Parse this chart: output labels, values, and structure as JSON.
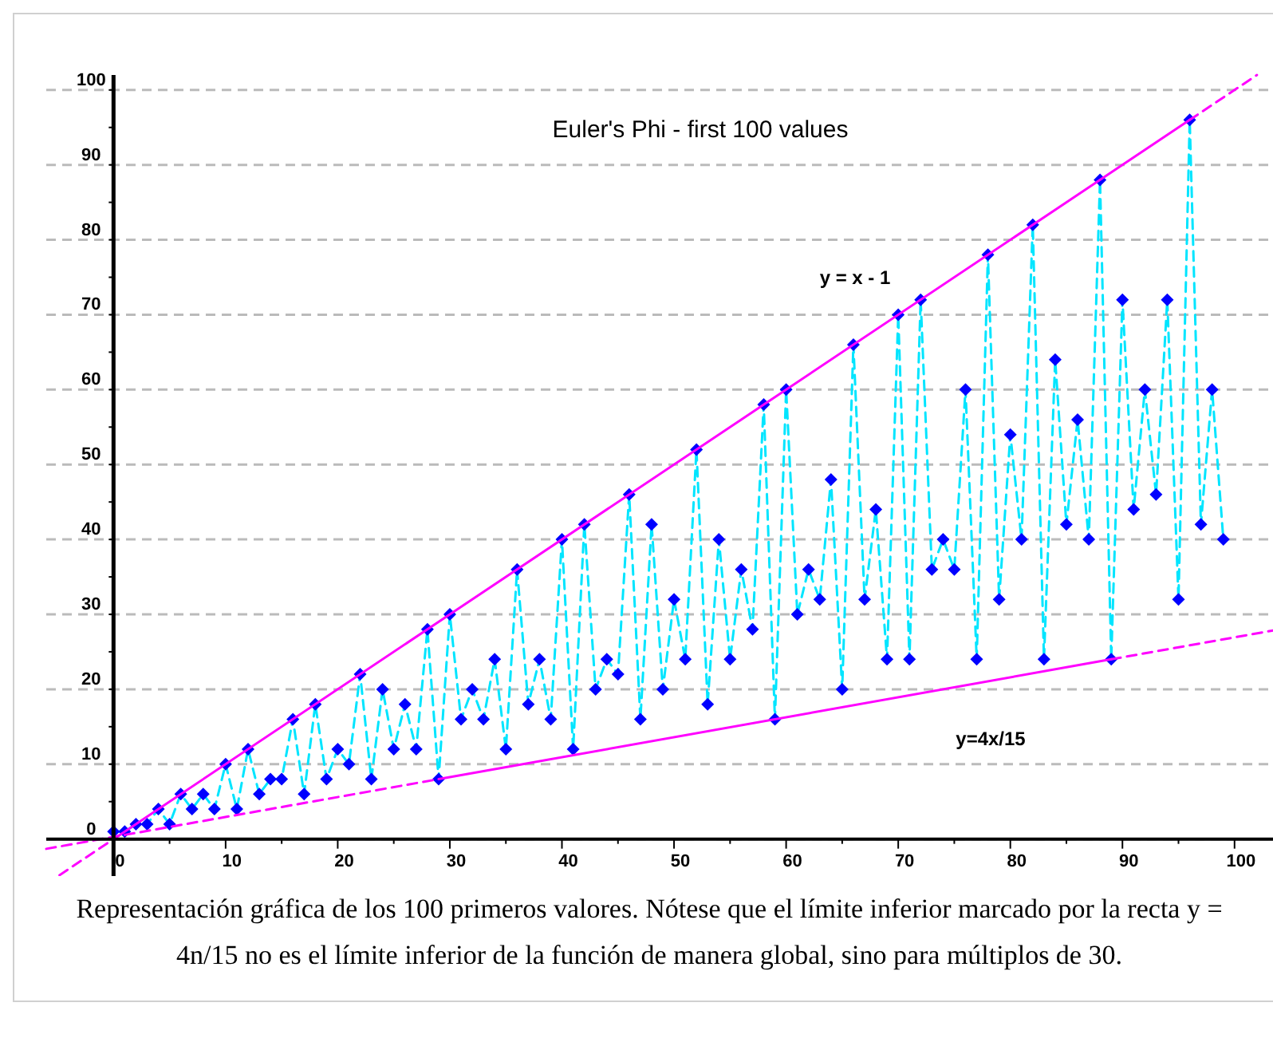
{
  "chart_data": {
    "type": "scatter",
    "title": "Euler's Phi - first 100 values",
    "annotations": [
      "y = x - 1",
      "y=4x/15",
      "Representación gráfica de los 100 primeros valores. Nótese que el límite inferior marcado por la recta y = 4n/15 no es el límite inferior de la función de manera global, sino para múltiplos de 30."
    ],
    "x": [
      0,
      1,
      2,
      3,
      4,
      5,
      6,
      7,
      8,
      9,
      10,
      11,
      12,
      13,
      14,
      15,
      16,
      17,
      18,
      19,
      20,
      21,
      22,
      23,
      24,
      25,
      26,
      27,
      28,
      29,
      30,
      31,
      32,
      33,
      34,
      35,
      36,
      37,
      38,
      39,
      40,
      41,
      42,
      43,
      44,
      45,
      46,
      47,
      48,
      49,
      50,
      51,
      52,
      53,
      54,
      55,
      56,
      57,
      58,
      59,
      60,
      61,
      62,
      63,
      64,
      65,
      66,
      67,
      68,
      69,
      70,
      71,
      72,
      73,
      74,
      75,
      76,
      77,
      78,
      79,
      80,
      81,
      82,
      83,
      84,
      85,
      86,
      87,
      88,
      89,
      90,
      91,
      92,
      93,
      94,
      95,
      96,
      97,
      98,
      99
    ],
    "series": [
      {
        "type": "line",
        "color": "#00e5ff",
        "line_style": "dashed",
        "marker": "none",
        "values": [
          1,
          1,
          2,
          2,
          4,
          2,
          6,
          4,
          6,
          4,
          10,
          4,
          12,
          6,
          8,
          8,
          16,
          6,
          18,
          8,
          12,
          10,
          22,
          8,
          20,
          12,
          18,
          12,
          28,
          8,
          30,
          16,
          20,
          16,
          24,
          12,
          36,
          18,
          24,
          16,
          40,
          12,
          42,
          20,
          24,
          22,
          46,
          16,
          42,
          20,
          32,
          24,
          52,
          18,
          40,
          24,
          36,
          28,
          58,
          16,
          60,
          30,
          36,
          32,
          48,
          20,
          66,
          32,
          44,
          24,
          70,
          24,
          72,
          36,
          40,
          36,
          60,
          24,
          78,
          32,
          54,
          40,
          82,
          24,
          64,
          42,
          56,
          40,
          88,
          24,
          72,
          44,
          60,
          46,
          72,
          32,
          96,
          42,
          60,
          40
        ]
      },
      {
        "color": "#0000ff",
        "marker": "diamond",
        "values": [
          1,
          1,
          2,
          2,
          4,
          2,
          6,
          4,
          6,
          4,
          10,
          4,
          12,
          6,
          8,
          8,
          16,
          6,
          18,
          8,
          12,
          10,
          22,
          8,
          20,
          12,
          18,
          12,
          28,
          8,
          30,
          16,
          20,
          16,
          24,
          12,
          36,
          18,
          24,
          16,
          40,
          12,
          42,
          20,
          24,
          22,
          46,
          16,
          42,
          20,
          32,
          24,
          52,
          18,
          40,
          24,
          36,
          28,
          58,
          16,
          60,
          30,
          36,
          32,
          48,
          20,
          66,
          32,
          44,
          24,
          70,
          24,
          72,
          36,
          40,
          36,
          60,
          24,
          78,
          32,
          54,
          40,
          82,
          24,
          64,
          42,
          56,
          40,
          88,
          24,
          72,
          44,
          60,
          46,
          72,
          32,
          96,
          42,
          60,
          40
        ]
      },
      {
        "type": "line",
        "color": "#ff00ff",
        "line_style": "solid",
        "marker": "none",
        "x": [
          0,
          96
        ],
        "values": [
          0,
          96
        ]
      },
      {
        "type": "line",
        "color": "#ff00ff",
        "line_style": "dashed",
        "marker": "none",
        "x": [
          -6,
          0
        ],
        "values": [
          -6,
          0
        ]
      },
      {
        "type": "line",
        "color": "#ff00ff",
        "line_style": "dashed",
        "marker": "none",
        "x": [
          96,
          102
        ],
        "values": [
          96,
          102
        ]
      },
      {
        "type": "line",
        "color": "#ff00ff",
        "line_style": "solid",
        "marker": "none",
        "x": [
          29,
          89
        ],
        "values": [
          8,
          24
        ]
      },
      {
        "type": "line",
        "color": "#ff00ff",
        "line_style": "dashed",
        "marker": "none",
        "x": [
          -6,
          29
        ],
        "values": [
          -1.3,
          8
        ]
      },
      {
        "type": "line",
        "color": "#ff00ff",
        "line_style": "dashed",
        "marker": "none",
        "x": [
          89,
          104
        ],
        "values": [
          24,
          28
        ]
      }
    ],
    "xlim": [
      -6,
      104
    ],
    "ylim": [
      -6,
      102
    ],
    "xticks": [
      0,
      {
        "value": 5,
        "label": null
      },
      10,
      {
        "value": 15,
        "label": null
      },
      20,
      {
        "value": 25,
        "label": null
      },
      30,
      {
        "value": 35,
        "label": null
      },
      40,
      {
        "value": 45,
        "label": null
      },
      50,
      {
        "value": 55,
        "label": null
      },
      60,
      {
        "value": 65,
        "label": null
      },
      70,
      {
        "value": 75,
        "label": null
      },
      80,
      {
        "value": 85,
        "label": null
      },
      90,
      {
        "value": 95,
        "label": null
      },
      100
    ],
    "yticks": [
      0,
      {
        "value": 5,
        "label": null
      },
      10,
      {
        "value": 15,
        "label": null
      },
      20,
      {
        "value": 25,
        "label": null
      },
      30,
      {
        "value": 35,
        "label": null
      },
      40,
      {
        "value": 45,
        "label": null
      },
      50,
      {
        "value": 55,
        "label": null
      },
      60,
      {
        "value": 65,
        "label": null
      },
      70,
      {
        "value": 75,
        "label": null
      },
      80,
      {
        "value": 85,
        "label": null
      },
      90,
      {
        "value": 95,
        "label": null
      },
      100
    ],
    "grid": "y"
  }
}
